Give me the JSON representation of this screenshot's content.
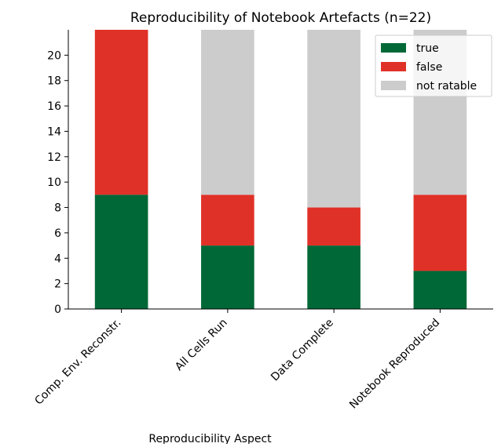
{
  "chart_data": {
    "type": "bar",
    "stacked": true,
    "title": "Reproducibility of Notebook Artefacts (n=22)",
    "xlabel": "Reproducibility Aspect",
    "ylabel": "",
    "ylim": [
      0,
      22
    ],
    "yticks": [
      0,
      2,
      4,
      6,
      8,
      10,
      12,
      14,
      16,
      18,
      20
    ],
    "categories": [
      "Comp. Env. Reconstr.",
      "All Cells Run",
      "Data Complete",
      "Notebook Reproduced"
    ],
    "series": [
      {
        "name": "true",
        "color": "#006837",
        "values": [
          9,
          5,
          5,
          3
        ]
      },
      {
        "name": "false",
        "color": "#e03128",
        "values": [
          13,
          4,
          3,
          6
        ]
      },
      {
        "name": "not ratable",
        "color": "#cccccc",
        "values": [
          0,
          13,
          14,
          13
        ]
      }
    ],
    "grid": false,
    "legend": "top-right"
  }
}
